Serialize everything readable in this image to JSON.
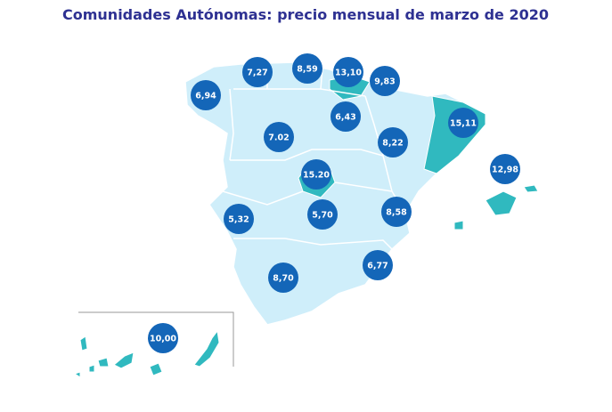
{
  "title": "Comunidades Autónomas: precio mensual de marzo de 2020",
  "regions": [
    {
      "label": "7,27"
    },
    {
      "label": "8,59"
    },
    {
      "label": "13,10"
    },
    {
      "label": "9,83"
    },
    {
      "label": "6,94"
    },
    {
      "label": "6,43"
    },
    {
      "label": "15,11"
    },
    {
      "label": "7.02"
    },
    {
      "label": "8,22"
    },
    {
      "label": "15.20"
    },
    {
      "label": "12,98"
    },
    {
      "label": "5,32"
    },
    {
      "label": "5,70"
    },
    {
      "label": "8,58"
    },
    {
      "label": "6,77"
    },
    {
      "label": "8,70"
    },
    {
      "label": "10,00"
    }
  ]
}
